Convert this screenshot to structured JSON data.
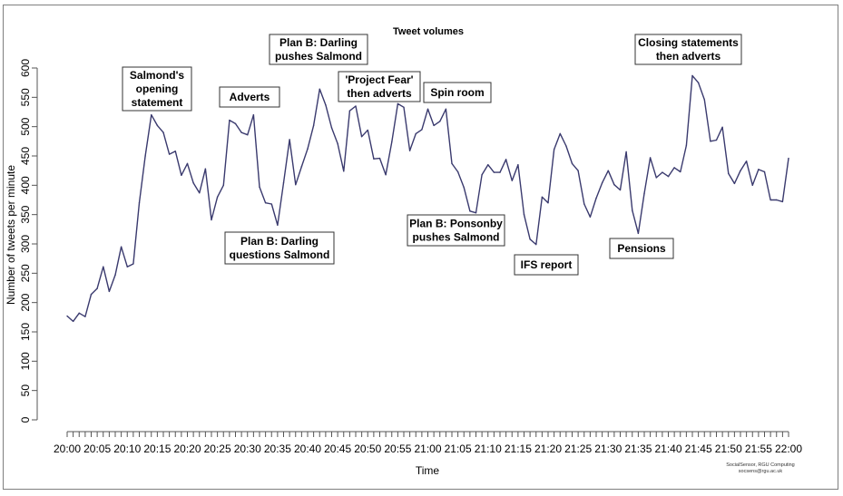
{
  "chart_data": {
    "type": "line",
    "title": "Tweet volumes",
    "xlabel": "Time",
    "ylabel": "Number of tweets per minute",
    "ylim": [
      0,
      600
    ],
    "yticks": [
      0,
      50,
      100,
      150,
      200,
      250,
      300,
      350,
      400,
      450,
      500,
      550,
      600
    ],
    "x_start": "20:00",
    "x_end": "22:00",
    "xtick_labels": [
      "20:00",
      "20:05",
      "20:10",
      "20:15",
      "20:20",
      "20:25",
      "20:30",
      "20:35",
      "20:40",
      "20:45",
      "20:50",
      "20:55",
      "21:00",
      "21:05",
      "21:10",
      "21:15",
      "21:20",
      "21:25",
      "21:30",
      "21:35",
      "21:40",
      "21:45",
      "21:50",
      "21:55",
      "22:00"
    ],
    "grid": false,
    "line_color": "#3a3a6e",
    "series": [
      {
        "values": [
          177,
          168,
          182,
          176,
          214,
          224,
          261,
          219,
          247,
          295,
          261,
          266,
          370,
          450,
          520,
          502,
          490,
          453,
          458,
          417,
          437,
          404,
          387,
          428,
          341,
          380,
          400,
          511,
          505,
          490,
          486,
          520,
          397,
          370,
          368,
          332,
          404,
          478,
          401,
          432,
          462,
          502,
          564,
          537,
          498,
          471,
          424,
          527,
          535,
          483,
          494,
          445,
          446,
          418,
          474,
          539,
          533,
          459,
          488,
          495,
          530,
          502,
          509,
          530,
          437,
          423,
          396,
          356,
          353,
          418,
          435,
          422,
          422,
          444,
          408,
          435,
          350,
          308,
          299,
          380,
          370,
          461,
          488,
          467,
          437,
          425,
          368,
          346,
          378,
          404,
          425,
          401,
          392,
          457,
          357,
          318,
          386,
          447,
          413,
          422,
          415,
          430,
          423,
          468,
          587,
          575,
          546,
          475,
          477,
          499,
          420,
          403,
          425,
          441,
          400,
          427,
          423,
          375,
          375,
          372,
          446
        ]
      }
    ],
    "annotations": [
      {
        "lines": [
          "Salmond's",
          "opening",
          "statement"
        ]
      },
      {
        "lines": [
          "Adverts"
        ]
      },
      {
        "lines": [
          "Plan B: Darling",
          "pushes Salmond"
        ]
      },
      {
        "lines": [
          "'Project Fear'",
          "then adverts"
        ]
      },
      {
        "lines": [
          "Spin room"
        ]
      },
      {
        "lines": [
          "Closing statements",
          "then adverts"
        ]
      },
      {
        "lines": [
          "Plan B: Darling",
          "questions Salmond"
        ]
      },
      {
        "lines": [
          "Plan B: Ponsonby",
          "pushes Salmond"
        ]
      },
      {
        "lines": [
          "IFS report"
        ]
      },
      {
        "lines": [
          "Pensions"
        ]
      }
    ],
    "credit": [
      "SocialSensor, RGU Computing",
      "socsens@rgu.ac.uk"
    ]
  }
}
